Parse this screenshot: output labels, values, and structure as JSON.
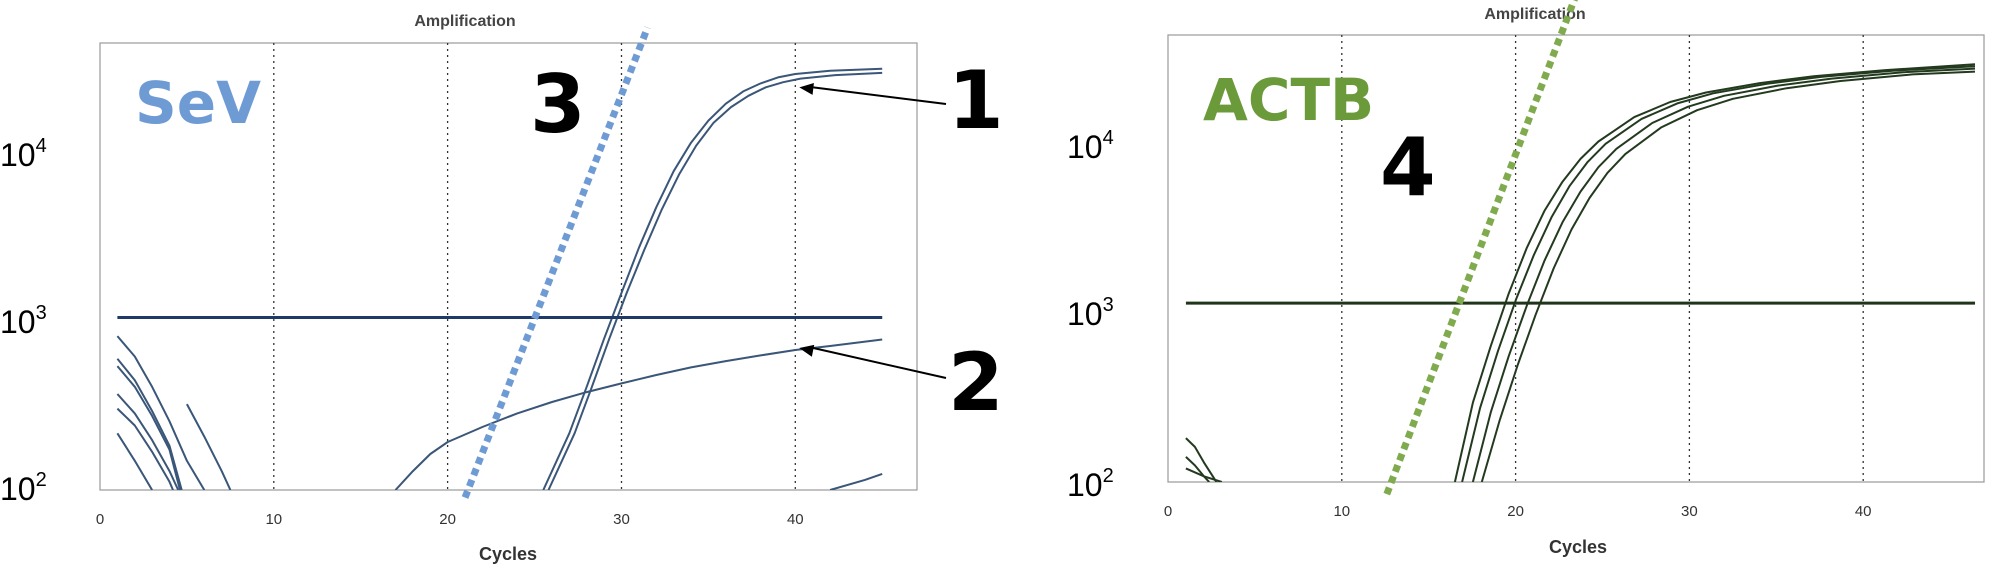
{
  "chart_data": [
    {
      "type": "line",
      "title": "Amplification",
      "xlabel": "Cycles",
      "ylabel": "",
      "gene_label": "SeV",
      "gene_color": "#6f9bd4",
      "curve_color": "#3a5678",
      "threshold_color": "#1f3a66",
      "y_scale": "log",
      "xlim": [
        0,
        47
      ],
      "ylim": [
        100,
        50000
      ],
      "x_ticks": [
        "0",
        "10",
        "20",
        "30",
        "40"
      ],
      "y_ticks": [
        {
          "base": "10",
          "exp": "2"
        },
        {
          "base": "10",
          "exp": "3"
        },
        {
          "base": "10",
          "exp": "4"
        }
      ],
      "grid": "dotted vertical at cycles 10, 20, 30, 40",
      "threshold": 1100,
      "callouts": [
        {
          "label": "1",
          "points_to": [
            40,
            27000
          ]
        },
        {
          "label": "2",
          "points_to": [
            40,
            720
          ]
        },
        {
          "label": "3"
        }
      ],
      "series": [
        {
          "values": [
            [
              25.5,
              100
            ],
            [
              27,
              220
            ],
            [
              28,
              420
            ],
            [
              29,
              820
            ],
            [
              30,
              1550
            ],
            [
              31,
              2900
            ],
            [
              32,
              5100
            ],
            [
              33,
              8400
            ],
            [
              34,
              12500
            ],
            [
              35,
              17000
            ],
            [
              36,
              21500
            ],
            [
              37,
              25500
            ],
            [
              38,
              28500
            ],
            [
              39,
              31000
            ],
            [
              40,
              32500
            ],
            [
              42,
              34000
            ],
            [
              45,
              35000
            ]
          ]
        },
        {
          "values": [
            [
              25.8,
              100
            ],
            [
              27.3,
              220
            ],
            [
              28.3,
              420
            ],
            [
              29.3,
              820
            ],
            [
              30.3,
              1550
            ],
            [
              31.3,
              2800
            ],
            [
              32.3,
              4900
            ],
            [
              33.3,
              8000
            ],
            [
              34.3,
              12000
            ],
            [
              35.3,
              16500
            ],
            [
              36.3,
              20500
            ],
            [
              37.3,
              24000
            ],
            [
              38.3,
              27000
            ],
            [
              39.3,
              29000
            ],
            [
              40.3,
              30500
            ],
            [
              42.3,
              32000
            ],
            [
              45,
              33000
            ]
          ]
        },
        {
          "values": [
            [
              17,
              100
            ],
            [
              18,
              130
            ],
            [
              19,
              165
            ],
            [
              20,
              195
            ],
            [
              22,
              240
            ],
            [
              24,
              290
            ],
            [
              26,
              340
            ],
            [
              28,
              390
            ],
            [
              30,
              440
            ],
            [
              32,
              495
            ],
            [
              34,
              550
            ],
            [
              36,
              600
            ],
            [
              38,
              650
            ],
            [
              40,
              700
            ],
            [
              42,
              740
            ],
            [
              45,
              810
            ]
          ]
        },
        {
          "values": [
            [
              1,
              850
            ],
            [
              2,
              640
            ],
            [
              3,
              420
            ],
            [
              4,
              260
            ],
            [
              5,
              150
            ],
            [
              6,
              100
            ]
          ]
        },
        {
          "values": [
            [
              1,
              620
            ],
            [
              2,
              460
            ],
            [
              3,
              300
            ],
            [
              4,
              185
            ],
            [
              4.7,
              100
            ]
          ]
        },
        {
          "values": [
            [
              1,
              560
            ],
            [
              2,
              420
            ],
            [
              3,
              280
            ],
            [
              4,
              175
            ],
            [
              4.6,
              100
            ]
          ]
        },
        {
          "values": [
            [
              1,
              380
            ],
            [
              2,
              290
            ],
            [
              3,
              200
            ],
            [
              4,
              130
            ],
            [
              4.5,
              100
            ]
          ]
        },
        {
          "values": [
            [
              1,
              310
            ],
            [
              2,
              245
            ],
            [
              3,
              170
            ],
            [
              4,
              112
            ],
            [
              4.2,
              100
            ]
          ]
        },
        {
          "values": [
            [
              1,
              220
            ],
            [
              2,
              150
            ],
            [
              3,
              100
            ]
          ]
        },
        {
          "values": [
            [
              5,
              330
            ],
            [
              6,
              210
            ],
            [
              7,
              130
            ],
            [
              7.5,
              100
            ]
          ]
        },
        {
          "values": [
            [
              42,
              100
            ],
            [
              44,
              115
            ],
            [
              45,
              125
            ]
          ]
        }
      ],
      "reference_line": {
        "style": "dotted",
        "color": "#6f9bd4",
        "from": [
          21,
          90
        ],
        "to": [
          31.5,
          62000
        ]
      }
    },
    {
      "type": "line",
      "title": "Amplification",
      "xlabel": "Cycles",
      "ylabel": "",
      "gene_label": "ACTB",
      "gene_color": "#6b9a3b",
      "curve_color": "#233a1f",
      "threshold_color": "#1e3519",
      "y_scale": "log",
      "xlim": [
        0,
        45.5
      ],
      "ylim": [
        100,
        40000
      ],
      "x_ticks": [
        "0",
        "10",
        "20",
        "30",
        "40"
      ],
      "y_ticks": [
        {
          "base": "10",
          "exp": "2"
        },
        {
          "base": "10",
          "exp": "3"
        },
        {
          "base": "10",
          "exp": "4"
        }
      ],
      "grid": "dotted vertical at cycles 10, 20, 30, 40",
      "threshold": 1100,
      "callouts": [
        {
          "label": "4"
        }
      ],
      "series": [
        {
          "values": [
            [
              16,
              100
            ],
            [
              17,
              290
            ],
            [
              18,
              620
            ],
            [
              19,
              1250
            ],
            [
              20,
              2300
            ],
            [
              21,
              3800
            ],
            [
              22,
              5600
            ],
            [
              23,
              7600
            ],
            [
              24,
              9600
            ],
            [
              26,
              13300
            ],
            [
              28,
              16300
            ],
            [
              30,
              18500
            ],
            [
              33,
              21000
            ],
            [
              36,
              23000
            ],
            [
              40,
              25000
            ],
            [
              45,
              27000
            ]
          ]
        },
        {
          "values": [
            [
              16.4,
              100
            ],
            [
              17.4,
              270
            ],
            [
              18.4,
              580
            ],
            [
              19.4,
              1150
            ],
            [
              20.4,
              2100
            ],
            [
              21.4,
              3500
            ],
            [
              22.4,
              5300
            ],
            [
              23.4,
              7300
            ],
            [
              24.4,
              9300
            ],
            [
              26.4,
              13000
            ],
            [
              28.4,
              16000
            ],
            [
              30.4,
              18300
            ],
            [
              33.4,
              20800
            ],
            [
              36.4,
              22800
            ],
            [
              40.4,
              24800
            ],
            [
              45,
              26300
            ]
          ]
        },
        {
          "values": [
            [
              17,
              100
            ],
            [
              18,
              255
            ],
            [
              19,
              540
            ],
            [
              20,
              1060
            ],
            [
              21,
              1950
            ],
            [
              22,
              3250
            ],
            [
              23,
              4900
            ],
            [
              24,
              6800
            ],
            [
              25,
              8700
            ],
            [
              27,
              12300
            ],
            [
              29,
              15300
            ],
            [
              31,
              17700
            ],
            [
              34,
              20300
            ],
            [
              37,
              22300
            ],
            [
              41,
              24300
            ],
            [
              45,
              25500
            ]
          ]
        },
        {
          "values": [
            [
              17.5,
              100
            ],
            [
              18.5,
              230
            ],
            [
              19.5,
              480
            ],
            [
              20.5,
              940
            ],
            [
              21.5,
              1750
            ],
            [
              22.5,
              2950
            ],
            [
              23.5,
              4500
            ],
            [
              24.5,
              6300
            ],
            [
              25.5,
              8100
            ],
            [
              27.5,
              11600
            ],
            [
              29.5,
              14600
            ],
            [
              31.5,
              17000
            ],
            [
              34.5,
              19600
            ],
            [
              37.5,
              21600
            ],
            [
              41.5,
              23600
            ],
            [
              45,
              24500
            ]
          ]
        },
        {
          "values": [
            [
              1,
              180
            ],
            [
              1.5,
              160
            ],
            [
              2,
              130
            ],
            [
              2.5,
              108
            ],
            [
              2.7,
              100
            ]
          ]
        },
        {
          "values": [
            [
              1,
              140
            ],
            [
              1.5,
              125
            ],
            [
              2,
              108
            ],
            [
              2.3,
              100
            ]
          ]
        },
        {
          "values": [
            [
              1,
              120
            ],
            [
              2,
              108
            ],
            [
              3,
              100
            ]
          ]
        }
      ],
      "reference_line": {
        "style": "dotted",
        "color": "#7fab4e",
        "from": [
          12.2,
          85
        ],
        "to": [
          23,
          80000
        ]
      }
    }
  ]
}
